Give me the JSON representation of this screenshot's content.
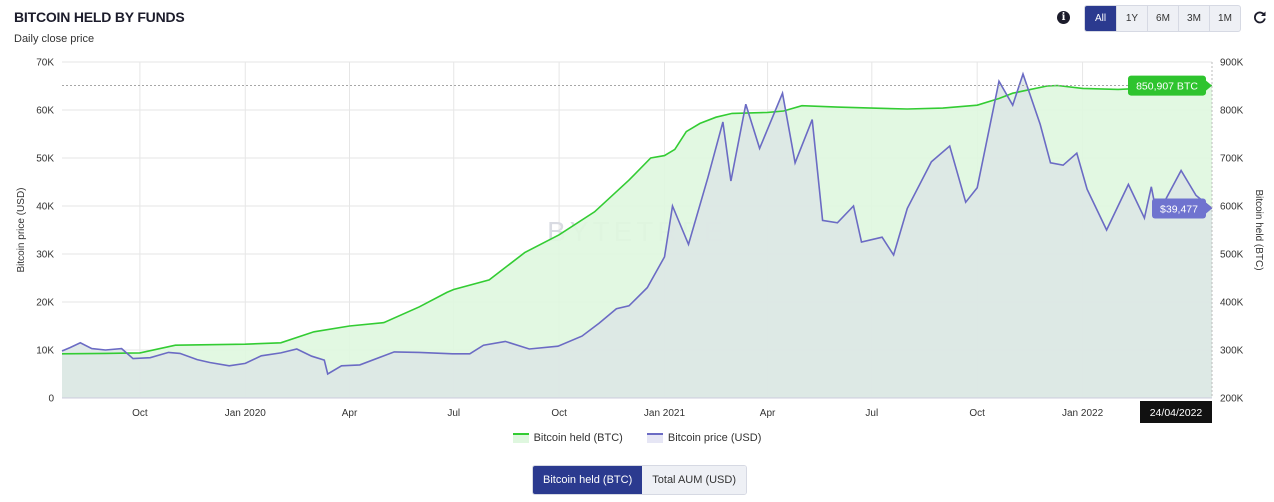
{
  "header": {
    "title": "BITCOIN HELD BY FUNDS",
    "subtitle": "Daily close price",
    "ranges": [
      "All",
      "1Y",
      "6M",
      "3M",
      "1M"
    ],
    "active_range": "All"
  },
  "colors": {
    "held_line": "#33cc33",
    "held_fill": "#dff7df",
    "price_line": "#6b6bc4",
    "price_fill": "#dde7e6",
    "accent": "#2b3a8f"
  },
  "icons": {
    "info": "info-icon",
    "refresh": "refresh-icon"
  },
  "watermark": "BYTETREE",
  "toggle": {
    "options": [
      "Bitcoin held (BTC)",
      "Total AUM (USD)"
    ],
    "active": "Bitcoin held (BTC)"
  },
  "chart_data": {
    "type": "line",
    "x_range": [
      "2019-07-25",
      "2022-04-24"
    ],
    "x_ticks": [
      {
        "date": "2019-10-01",
        "label": "Oct"
      },
      {
        "date": "2020-01-01",
        "label": "Jan 2020"
      },
      {
        "date": "2020-04-01",
        "label": "Apr"
      },
      {
        "date": "2020-07-01",
        "label": "Jul"
      },
      {
        "date": "2020-10-01",
        "label": "Oct"
      },
      {
        "date": "2021-01-01",
        "label": "Jan 2021"
      },
      {
        "date": "2021-04-01",
        "label": "Apr"
      },
      {
        "date": "2021-07-01",
        "label": "Jul"
      },
      {
        "date": "2021-10-01",
        "label": "Oct"
      },
      {
        "date": "2022-01-01",
        "label": "Jan 2022"
      }
    ],
    "y_left": {
      "label": "Bitcoin price (USD)",
      "range": [
        0,
        70000
      ],
      "ticks": [
        0,
        10000,
        20000,
        30000,
        40000,
        50000,
        60000,
        70000
      ],
      "tick_labels": [
        "0",
        "10K",
        "20K",
        "30K",
        "40K",
        "50K",
        "60K",
        "70K"
      ]
    },
    "y_right": {
      "label": "Bitcoin held (BTC)",
      "range": [
        200000,
        900000
      ],
      "ticks": [
        200000,
        300000,
        400000,
        500000,
        600000,
        700000,
        800000,
        900000
      ],
      "tick_labels": [
        "200K",
        "300K",
        "400K",
        "500K",
        "600K",
        "700K",
        "800K",
        "900K"
      ]
    },
    "grid": true,
    "legend_position": "bottom",
    "series": [
      {
        "name": "Bitcoin held (BTC)",
        "axis": "right",
        "points": [
          [
            "2019-07-25",
            292000
          ],
          [
            "2019-09-01",
            293000
          ],
          [
            "2019-10-01",
            294000
          ],
          [
            "2019-11-01",
            310000
          ],
          [
            "2019-12-01",
            311000
          ],
          [
            "2020-01-01",
            312000
          ],
          [
            "2020-02-01",
            315000
          ],
          [
            "2020-03-01",
            338000
          ],
          [
            "2020-04-01",
            350000
          ],
          [
            "2020-05-01",
            357000
          ],
          [
            "2020-06-01",
            390000
          ],
          [
            "2020-06-25",
            420000
          ],
          [
            "2020-07-01",
            426000
          ],
          [
            "2020-08-01",
            446000
          ],
          [
            "2020-09-01",
            503000
          ],
          [
            "2020-10-01",
            540000
          ],
          [
            "2020-11-01",
            588000
          ],
          [
            "2020-12-01",
            654000
          ],
          [
            "2020-12-20",
            700000
          ],
          [
            "2021-01-01",
            705000
          ],
          [
            "2021-01-10",
            718000
          ],
          [
            "2021-01-20",
            755000
          ],
          [
            "2021-02-01",
            772000
          ],
          [
            "2021-02-15",
            785000
          ],
          [
            "2021-03-01",
            793000
          ],
          [
            "2021-04-01",
            795000
          ],
          [
            "2021-04-15",
            798000
          ],
          [
            "2021-05-01",
            809000
          ],
          [
            "2021-06-01",
            806000
          ],
          [
            "2021-07-01",
            804000
          ],
          [
            "2021-08-01",
            802000
          ],
          [
            "2021-09-01",
            804000
          ],
          [
            "2021-10-01",
            810000
          ],
          [
            "2021-10-20",
            824000
          ],
          [
            "2021-11-01",
            835000
          ],
          [
            "2021-11-15",
            842000
          ],
          [
            "2021-12-01",
            850000
          ],
          [
            "2021-12-10",
            851000
          ],
          [
            "2022-01-01",
            845000
          ],
          [
            "2022-02-01",
            843000
          ],
          [
            "2022-03-01",
            846000
          ],
          [
            "2022-04-01",
            849000
          ],
          [
            "2022-04-24",
            850907
          ]
        ]
      },
      {
        "name": "Bitcoin price (USD)",
        "axis": "left",
        "points": [
          [
            "2019-07-25",
            9800
          ],
          [
            "2019-08-01",
            10500
          ],
          [
            "2019-08-10",
            11500
          ],
          [
            "2019-08-20",
            10300
          ],
          [
            "2019-09-01",
            10000
          ],
          [
            "2019-09-15",
            10300
          ],
          [
            "2019-09-25",
            8200
          ],
          [
            "2019-10-10",
            8400
          ],
          [
            "2019-10-26",
            9500
          ],
          [
            "2019-11-05",
            9300
          ],
          [
            "2019-11-20",
            8000
          ],
          [
            "2019-12-01",
            7400
          ],
          [
            "2019-12-18",
            6700
          ],
          [
            "2020-01-01",
            7200
          ],
          [
            "2020-01-15",
            8800
          ],
          [
            "2020-02-01",
            9400
          ],
          [
            "2020-02-15",
            10200
          ],
          [
            "2020-02-28",
            8700
          ],
          [
            "2020-03-10",
            7900
          ],
          [
            "2020-03-13",
            5000
          ],
          [
            "2020-03-25",
            6700
          ],
          [
            "2020-04-10",
            6900
          ],
          [
            "2020-04-30",
            8700
          ],
          [
            "2020-05-10",
            9600
          ],
          [
            "2020-06-01",
            9500
          ],
          [
            "2020-06-30",
            9200
          ],
          [
            "2020-07-15",
            9200
          ],
          [
            "2020-07-27",
            11000
          ],
          [
            "2020-08-15",
            11800
          ],
          [
            "2020-09-05",
            10200
          ],
          [
            "2020-09-30",
            10800
          ],
          [
            "2020-10-21",
            12900
          ],
          [
            "2020-11-05",
            15600
          ],
          [
            "2020-11-20",
            18600
          ],
          [
            "2020-12-01",
            19200
          ],
          [
            "2020-12-17",
            23000
          ],
          [
            "2021-01-01",
            29400
          ],
          [
            "2021-01-08",
            40000
          ],
          [
            "2021-01-22",
            32000
          ],
          [
            "2021-02-08",
            46000
          ],
          [
            "2021-02-21",
            57500
          ],
          [
            "2021-02-28",
            45200
          ],
          [
            "2021-03-13",
            61200
          ],
          [
            "2021-03-25",
            52000
          ],
          [
            "2021-04-14",
            63500
          ],
          [
            "2021-04-25",
            49000
          ],
          [
            "2021-05-10",
            58000
          ],
          [
            "2021-05-19",
            37000
          ],
          [
            "2021-06-01",
            36500
          ],
          [
            "2021-06-15",
            40000
          ],
          [
            "2021-06-22",
            32500
          ],
          [
            "2021-07-10",
            33500
          ],
          [
            "2021-07-20",
            29800
          ],
          [
            "2021-08-01",
            39500
          ],
          [
            "2021-08-22",
            49200
          ],
          [
            "2021-09-07",
            52500
          ],
          [
            "2021-09-21",
            40800
          ],
          [
            "2021-10-01",
            43800
          ],
          [
            "2021-10-20",
            66000
          ],
          [
            "2021-11-01",
            61000
          ],
          [
            "2021-11-10",
            67500
          ],
          [
            "2021-11-25",
            57000
          ],
          [
            "2021-12-04",
            49000
          ],
          [
            "2021-12-15",
            48500
          ],
          [
            "2021-12-27",
            51000
          ],
          [
            "2022-01-05",
            43500
          ],
          [
            "2022-01-22",
            35000
          ],
          [
            "2022-02-10",
            44500
          ],
          [
            "2022-02-24",
            37500
          ],
          [
            "2022-03-02",
            44000
          ],
          [
            "2022-03-07",
            38000
          ],
          [
            "2022-03-28",
            47400
          ],
          [
            "2022-04-10",
            42200
          ],
          [
            "2022-04-24",
            39477
          ]
        ]
      }
    ],
    "annotations": {
      "held_last_label": "850,907 BTC",
      "price_last_label": "$39,477",
      "date_label": "24/04/2022"
    }
  }
}
